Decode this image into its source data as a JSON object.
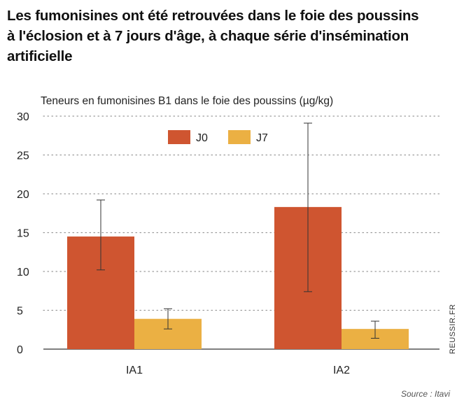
{
  "header": {
    "title_line1": "Les fumonisines ont été retrouvées dans le foie des poussins",
    "title_line2": "à l'éclosion et à 7 jours d'âge, à chaque série d'insémination",
    "title_line3": "artificielle"
  },
  "footer": {
    "source": "Source : Itavi",
    "watermark": "REUSSIR.FR"
  },
  "colors": {
    "J0": "#cf5530",
    "J7": "#ebb043",
    "grid": "#9a9a9a",
    "axis": "#333333",
    "error_bar": "#333333"
  },
  "chart_data": {
    "type": "bar",
    "title": "Teneurs en fumonisines B1 dans le foie des poussins (µg/kg)",
    "xlabel": "",
    "ylabel": "",
    "categories": [
      "IA1",
      "IA2"
    ],
    "series": [
      {
        "name": "J0",
        "values": [
          14.5,
          18.3
        ],
        "error_low": [
          10.2,
          7.4
        ],
        "error_high": [
          19.2,
          29.1
        ]
      },
      {
        "name": "J7",
        "values": [
          3.9,
          2.6
        ],
        "error_low": [
          2.6,
          1.4
        ],
        "error_high": [
          5.2,
          3.6
        ]
      }
    ],
    "ylim": [
      0,
      30
    ],
    "yticks": [
      0,
      5,
      10,
      15,
      20,
      25,
      30
    ],
    "grid": true,
    "legend_position": "top-left"
  }
}
